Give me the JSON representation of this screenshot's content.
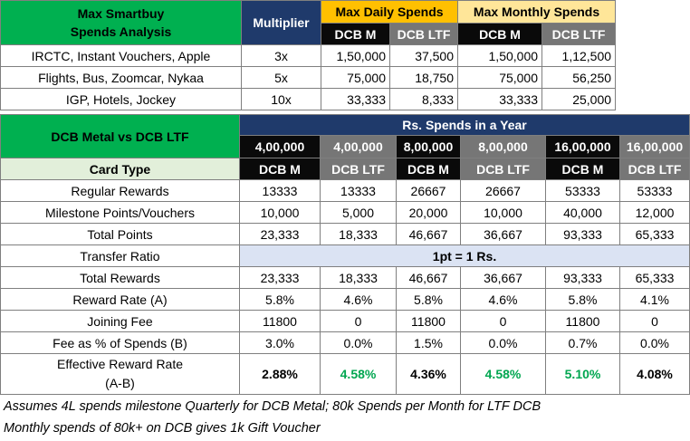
{
  "top": {
    "title_line1": "Max Smartbuy",
    "title_line2": "Spends Analysis",
    "multiplier_header": "Multiplier",
    "daily_header": "Max Daily Spends",
    "monthly_header": "Max Monthly Spends",
    "sub": [
      "DCB M",
      "DCB LTF",
      "DCB M",
      "DCB LTF"
    ],
    "rows": [
      {
        "label": "IRCTC, Instant Vouchers, Apple",
        "mult": "3x",
        "v": [
          "1,50,000",
          "37,500",
          "1,50,000",
          "1,12,500"
        ]
      },
      {
        "label": "Flights, Bus, Zoomcar, Nykaa",
        "mult": "5x",
        "v": [
          "75,000",
          "18,750",
          "75,000",
          "56,250"
        ]
      },
      {
        "label": "IGP, Hotels, Jockey",
        "mult": "10x",
        "v": [
          "33,333",
          "8,333",
          "33,333",
          "25,000"
        ]
      }
    ]
  },
  "main": {
    "title": "DCB Metal vs DCB LTF",
    "spends_header": "Rs. Spends in a Year",
    "spend_levels": [
      "4,00,000",
      "4,00,000",
      "8,00,000",
      "8,00,000",
      "16,00,000",
      "16,00,000"
    ],
    "card_type_label": "Card Type",
    "cards": [
      "DCB M",
      "DCB LTF",
      "DCB M",
      "DCB LTF",
      "DCB M",
      "DCB LTF"
    ],
    "rows": [
      {
        "label": "Regular Rewards",
        "v": [
          "13333",
          "13333",
          "26667",
          "26667",
          "53333",
          "53333"
        ]
      },
      {
        "label": "Milestone Points/Vouchers",
        "v": [
          "10,000",
          "5,000",
          "20,000",
          "10,000",
          "40,000",
          "12,000"
        ]
      },
      {
        "label": "Total Points",
        "v": [
          "23,333",
          "18,333",
          "46,667",
          "36,667",
          "93,333",
          "65,333"
        ]
      }
    ],
    "transfer_label": "Transfer Ratio",
    "transfer_value": "1pt = 1 Rs.",
    "rows2": [
      {
        "label": "Total Rewards",
        "v": [
          "23,333",
          "18,333",
          "46,667",
          "36,667",
          "93,333",
          "65,333"
        ]
      },
      {
        "label": "Reward Rate (A)",
        "v": [
          "5.8%",
          "4.6%",
          "5.8%",
          "4.6%",
          "5.8%",
          "4.1%"
        ]
      },
      {
        "label": "Joining Fee",
        "v": [
          "11800",
          "0",
          "11800",
          "0",
          "11800",
          "0"
        ]
      },
      {
        "label": "Fee as % of Spends (B)",
        "v": [
          "3.0%",
          "0.0%",
          "1.5%",
          "0.0%",
          "0.7%",
          "0.0%"
        ]
      }
    ],
    "effective_label_1": "Effective Reward Rate",
    "effective_label_2": "(A-B)",
    "effective": [
      "2.88%",
      "4.58%",
      "4.36%",
      "4.58%",
      "5.10%",
      "4.08%"
    ],
    "effective_green_color": "#00a650"
  },
  "notes": [
    "Assumes 4L spends milestone Quarterly for DCB Metal; 80k Spends per Month for LTF DCB",
    "Monthly spends of 80k+ on DCB gives 1k Gift Voucher"
  ]
}
